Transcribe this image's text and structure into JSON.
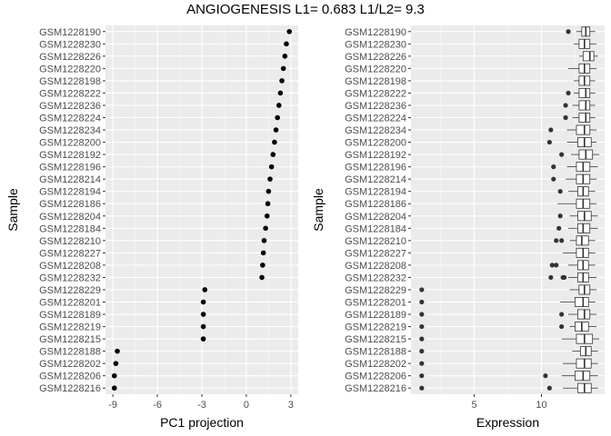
{
  "title": "ANGIOGENESIS L1= 0.683 L1/L2= 9.3",
  "chart_data": [
    {
      "type": "scatter",
      "xlabel": "PC1 projection",
      "ylabel": "Sample",
      "xlim": [
        -9.5,
        3.5
      ],
      "xticks": [
        -9,
        -6,
        -3,
        0,
        3
      ],
      "grid": true,
      "categories": [
        "GSM1228190",
        "GSM1228230",
        "GSM1228226",
        "GSM1228220",
        "GSM1228198",
        "GSM1228222",
        "GSM1228236",
        "GSM1228224",
        "GSM1228234",
        "GSM1228200",
        "GSM1228192",
        "GSM1228196",
        "GSM1228214",
        "GSM1228194",
        "GSM1228186",
        "GSM1228204",
        "GSM1228184",
        "GSM1228210",
        "GSM1228227",
        "GSM1228208",
        "GSM1228232",
        "GSM1228229",
        "GSM1228201",
        "GSM1228189",
        "GSM1228219",
        "GSM1228215",
        "GSM1228188",
        "GSM1228202",
        "GSM1228206",
        "GSM1228216"
      ],
      "values": [
        2.9,
        2.7,
        2.6,
        2.5,
        2.4,
        2.3,
        2.2,
        2.1,
        2.0,
        1.9,
        1.8,
        1.7,
        1.6,
        1.5,
        1.45,
        1.4,
        1.3,
        1.2,
        1.15,
        1.1,
        1.05,
        -2.8,
        -2.9,
        -2.9,
        -2.9,
        -2.9,
        -8.7,
        -8.8,
        -8.9,
        -8.9
      ]
    },
    {
      "type": "boxplot",
      "xlabel": "Expression",
      "ylabel": "Sample",
      "xlim": [
        0.3,
        14.7
      ],
      "xticks": [
        5,
        10
      ],
      "grid": true,
      "categories": [
        "GSM1228190",
        "GSM1228230",
        "GSM1228226",
        "GSM1228220",
        "GSM1228198",
        "GSM1228222",
        "GSM1228236",
        "GSM1228224",
        "GSM1228234",
        "GSM1228200",
        "GSM1228192",
        "GSM1228196",
        "GSM1228214",
        "GSM1228194",
        "GSM1228186",
        "GSM1228204",
        "GSM1228184",
        "GSM1228210",
        "GSM1228227",
        "GSM1228208",
        "GSM1228232",
        "GSM1228229",
        "GSM1228201",
        "GSM1228189",
        "GSM1228219",
        "GSM1228215",
        "GSM1228188",
        "GSM1228202",
        "GSM1228206",
        "GSM1228216"
      ],
      "boxes": [
        {
          "min": 12.6,
          "q1": 13.0,
          "median": 13.3,
          "q3": 13.6,
          "max": 14.0,
          "outliers": [
            12.0
          ]
        },
        {
          "min": 12.4,
          "q1": 12.8,
          "median": 13.2,
          "q3": 13.6,
          "max": 14.1,
          "outliers": []
        },
        {
          "min": 12.8,
          "q1": 13.1,
          "median": 13.6,
          "q3": 13.9,
          "max": 14.2,
          "outliers": []
        },
        {
          "min": 12.0,
          "q1": 12.8,
          "median": 13.2,
          "q3": 13.6,
          "max": 14.1,
          "outliers": []
        },
        {
          "min": 12.4,
          "q1": 12.8,
          "median": 13.2,
          "q3": 13.6,
          "max": 14.0,
          "outliers": []
        },
        {
          "min": 12.4,
          "q1": 12.8,
          "median": 13.3,
          "q3": 13.6,
          "max": 14.0,
          "outliers": [
            12.0
          ]
        },
        {
          "min": 12.3,
          "q1": 12.8,
          "median": 13.3,
          "q3": 13.6,
          "max": 14.0,
          "outliers": [
            11.8
          ]
        },
        {
          "min": 12.3,
          "q1": 12.8,
          "median": 13.3,
          "q3": 13.6,
          "max": 14.0,
          "outliers": [
            11.8
          ]
        },
        {
          "min": 11.9,
          "q1": 12.6,
          "median": 13.2,
          "q3": 13.6,
          "max": 14.1,
          "outliers": [
            10.7
          ]
        },
        {
          "min": 11.9,
          "q1": 12.7,
          "median": 13.2,
          "q3": 13.7,
          "max": 14.1,
          "outliers": [
            10.6
          ]
        },
        {
          "min": 12.2,
          "q1": 12.8,
          "median": 13.3,
          "q3": 13.8,
          "max": 14.3,
          "outliers": [
            11.5
          ]
        },
        {
          "min": 11.9,
          "q1": 12.6,
          "median": 13.1,
          "q3": 13.6,
          "max": 14.2,
          "outliers": [
            10.9
          ]
        },
        {
          "min": 11.8,
          "q1": 12.6,
          "median": 13.1,
          "q3": 13.6,
          "max": 14.1,
          "outliers": [
            10.9
          ]
        },
        {
          "min": 12.0,
          "q1": 12.7,
          "median": 13.1,
          "q3": 13.5,
          "max": 14.0,
          "outliers": [
            11.4
          ]
        },
        {
          "min": 11.2,
          "q1": 12.6,
          "median": 13.1,
          "q3": 13.6,
          "max": 14.1,
          "outliers": []
        },
        {
          "min": 12.1,
          "q1": 12.7,
          "median": 13.2,
          "q3": 13.7,
          "max": 14.2,
          "outliers": [
            11.4
          ]
        },
        {
          "min": 12.0,
          "q1": 12.7,
          "median": 13.1,
          "q3": 13.6,
          "max": 14.2,
          "outliers": [
            11.3
          ]
        },
        {
          "min": 12.1,
          "q1": 12.6,
          "median": 13.0,
          "q3": 13.5,
          "max": 14.0,
          "outliers": [
            11.1,
            11.5
          ]
        },
        {
          "min": 11.6,
          "q1": 12.6,
          "median": 13.1,
          "q3": 13.5,
          "max": 14.0,
          "outliers": []
        },
        {
          "min": 12.0,
          "q1": 12.7,
          "median": 13.1,
          "q3": 13.5,
          "max": 14.0,
          "outliers": [
            10.8,
            11.1
          ]
        },
        {
          "min": 12.0,
          "q1": 12.7,
          "median": 13.1,
          "q3": 13.5,
          "max": 14.1,
          "outliers": [
            10.7,
            11.6,
            11.7
          ]
        },
        {
          "min": 12.1,
          "q1": 12.8,
          "median": 13.2,
          "q3": 13.6,
          "max": 14.1,
          "outliers": [
            1.1
          ]
        },
        {
          "min": 11.4,
          "q1": 12.5,
          "median": 13.1,
          "q3": 13.5,
          "max": 14.0,
          "outliers": [
            1.1
          ]
        },
        {
          "min": 12.0,
          "q1": 12.7,
          "median": 13.2,
          "q3": 13.6,
          "max": 14.1,
          "outliers": [
            11.5,
            1.1
          ]
        },
        {
          "min": 12.1,
          "q1": 12.5,
          "median": 13.0,
          "q3": 13.5,
          "max": 14.1,
          "outliers": [
            11.5,
            1.1
          ]
        },
        {
          "min": 11.5,
          "q1": 12.6,
          "median": 13.2,
          "q3": 13.8,
          "max": 14.3,
          "outliers": [
            1.1
          ]
        },
        {
          "min": 12.3,
          "q1": 12.9,
          "median": 13.3,
          "q3": 13.7,
          "max": 14.2,
          "outliers": [
            1.1
          ]
        },
        {
          "min": 11.6,
          "q1": 12.6,
          "median": 13.2,
          "q3": 13.7,
          "max": 14.2,
          "outliers": [
            1.1
          ]
        },
        {
          "min": 11.5,
          "q1": 12.5,
          "median": 13.1,
          "q3": 13.6,
          "max": 14.2,
          "outliers": [
            10.3,
            1.1
          ]
        },
        {
          "min": 11.6,
          "q1": 12.7,
          "median": 13.2,
          "q3": 13.7,
          "max": 14.2,
          "outliers": [
            10.6,
            1.1
          ]
        }
      ]
    }
  ]
}
